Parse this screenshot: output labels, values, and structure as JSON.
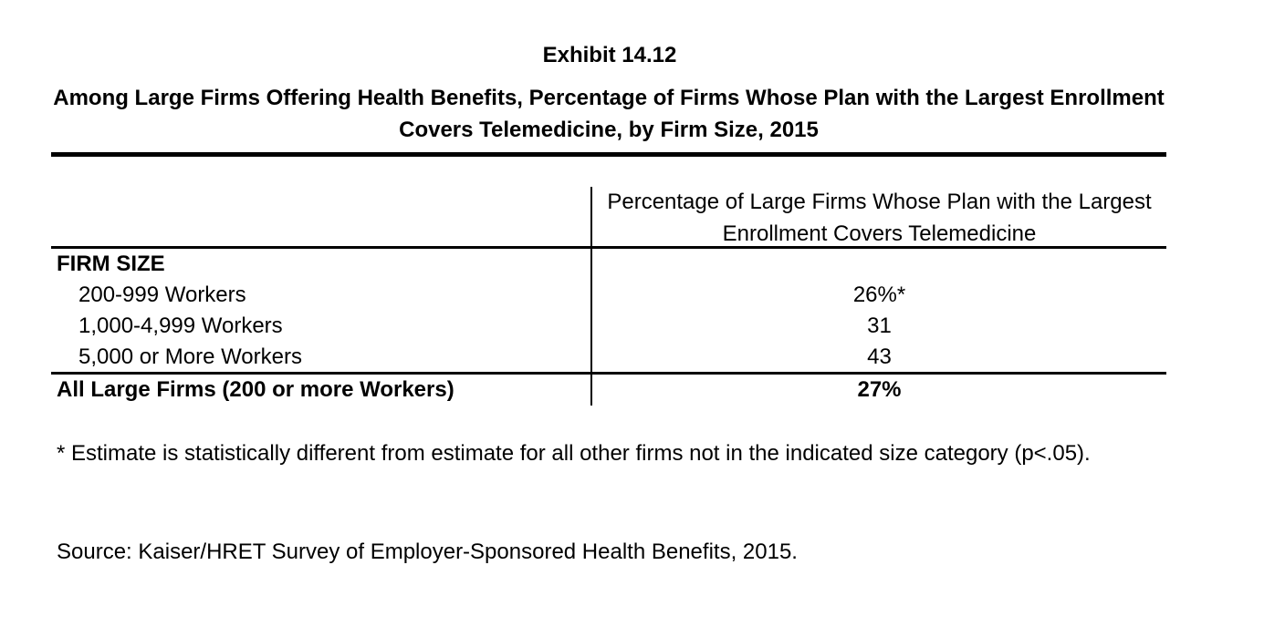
{
  "exhibit": {
    "number": "Exhibit 14.12",
    "title": "Among Large Firms Offering Health Benefits, Percentage of Firms Whose Plan with the Largest Enrollment Covers Telemedicine, by Firm Size, 2015"
  },
  "chart_data": {
    "type": "table",
    "column_header": "Percentage of Large Firms Whose Plan with the Largest Enrollment Covers Telemedicine",
    "section_label": "FIRM SIZE",
    "rows": [
      {
        "label": "200-999 Workers",
        "value_text": "26%*",
        "value": 26,
        "significant": true
      },
      {
        "label": "1,000-4,999 Workers",
        "value_text": "31",
        "value": 31,
        "significant": false
      },
      {
        "label": "5,000 or More Workers",
        "value_text": "43",
        "value": 43,
        "significant": false
      }
    ],
    "total": {
      "label": "All Large Firms (200 or more Workers)",
      "value_text": "27%",
      "value": 27
    },
    "unit": "%"
  },
  "footnote": "* Estimate is statistically different from estimate for all other firms not in the indicated size category (p<.05).",
  "source": "Source: Kaiser/HRET Survey of Employer-Sponsored Health Benefits, 2015."
}
